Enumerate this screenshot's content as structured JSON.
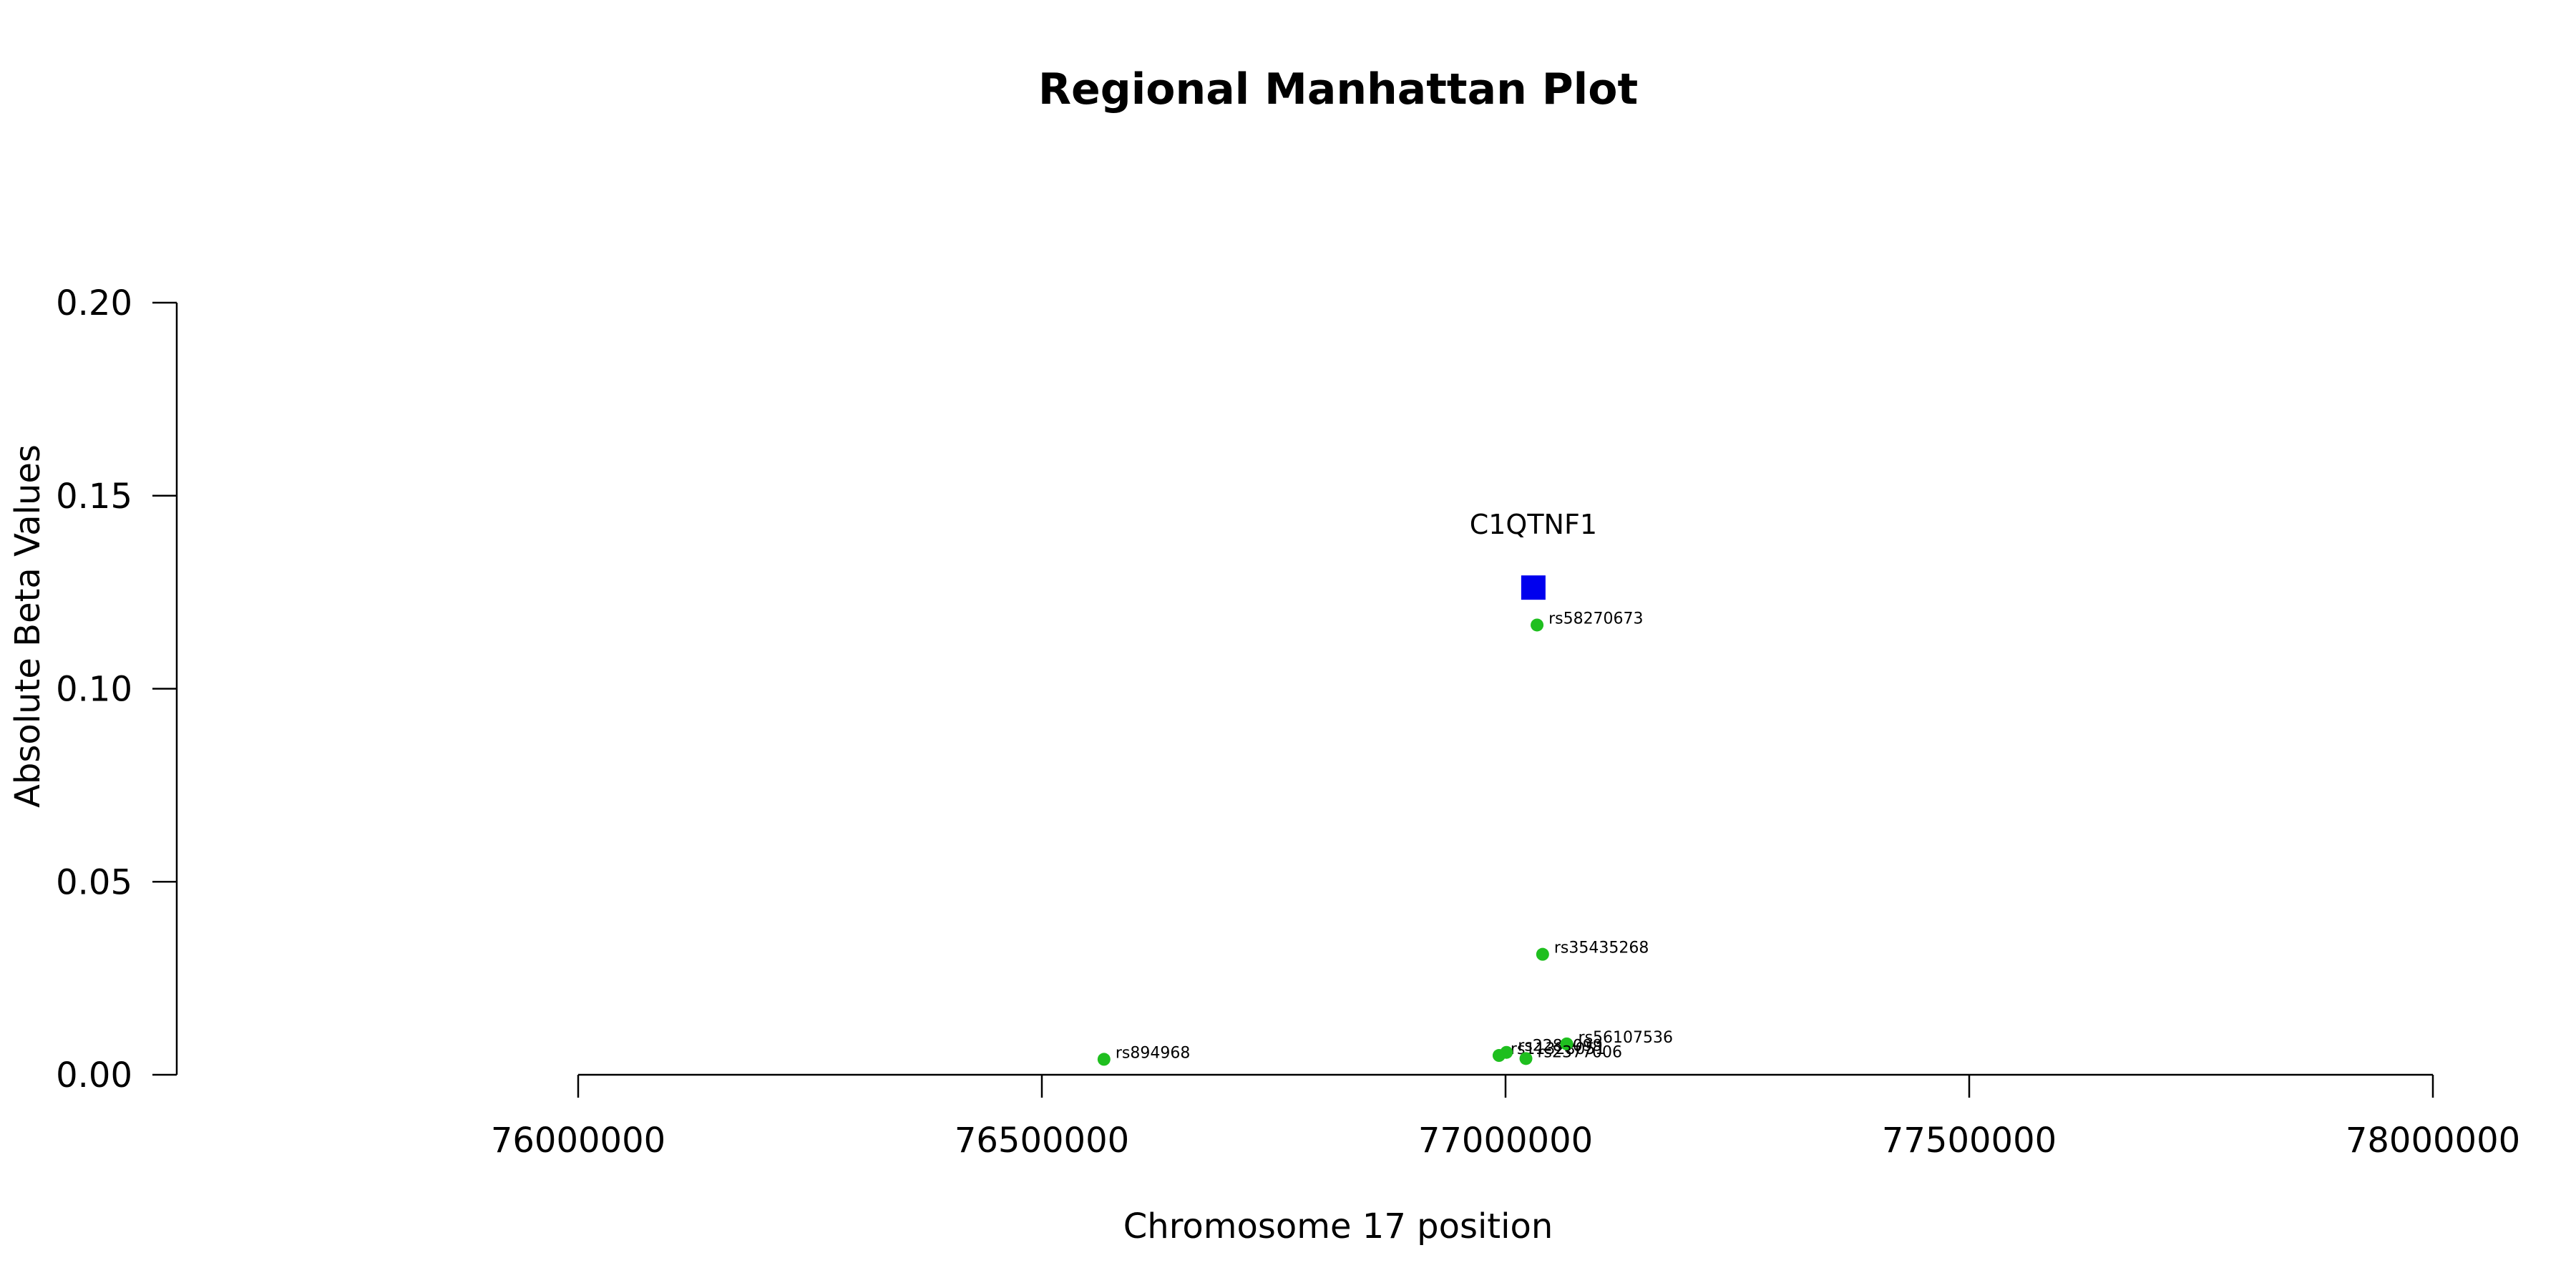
{
  "chart_data": {
    "type": "scatter",
    "title": "Regional Manhattan Plot",
    "xlabel": "Chromosome 17 position",
    "ylabel": "Absolute Beta Values",
    "xlim": [
      76000000,
      78000000
    ],
    "ylim": [
      0,
      0.2
    ],
    "x_ticks": [
      76000000,
      76500000,
      77000000,
      77500000,
      78000000
    ],
    "x_tick_labels": [
      "76000000",
      "76500000",
      "77000000",
      "77500000",
      "78000000"
    ],
    "y_ticks": [
      0,
      0.05,
      0.1,
      0.15,
      0.2
    ],
    "y_tick_labels": [
      "0.00",
      "0.05",
      "0.10",
      "0.15",
      "0.20"
    ],
    "grid": false,
    "colors": {
      "snp": "#1fbf1f",
      "gene": "#0000ee"
    },
    "series": [
      {
        "name": "",
        "kind": "snp",
        "points": [
          {
            "label": "rs58270673",
            "x": 77034000,
            "y": 0.1165
          },
          {
            "label": "rs35435268",
            "x": 77040000,
            "y": 0.0312
          },
          {
            "label": "rs894968",
            "x": 76567000,
            "y": 0.004
          },
          {
            "label": "rs11328051",
            "x": 76993000,
            "y": 0.005
          },
          {
            "label": "rs2280099",
            "x": 77001000,
            "y": 0.0058
          },
          {
            "label": "rs56107536",
            "x": 77066000,
            "y": 0.008
          },
          {
            "label": "rs2377006",
            "x": 77022000,
            "y": 0.0042
          }
        ]
      },
      {
        "name": "",
        "kind": "gene",
        "points": [
          {
            "label": "C1QTNF1",
            "x": 77030000,
            "y": 0.1262
          }
        ]
      }
    ]
  }
}
